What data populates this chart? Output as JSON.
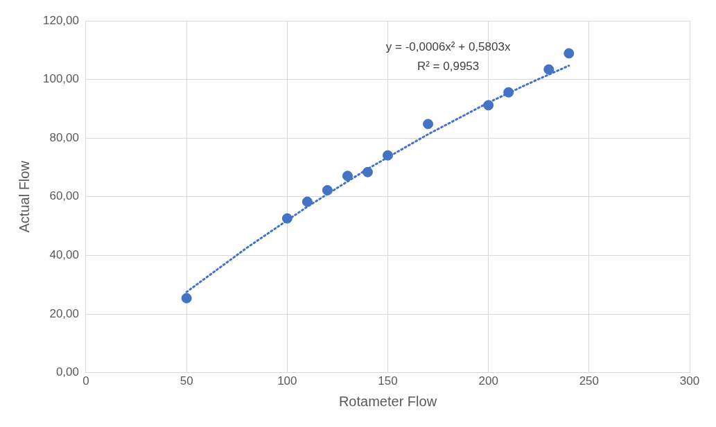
{
  "chart_data": {
    "type": "scatter",
    "xlabel": "Rotameter Flow",
    "ylabel": "Actual Flow",
    "xlim": [
      0,
      300
    ],
    "xticks": [
      0,
      50,
      100,
      150,
      200,
      250,
      300
    ],
    "ylim": [
      0,
      120
    ],
    "yticks": [
      {
        "value": 0,
        "label": "0,00"
      },
      {
        "value": 20,
        "label": "20,00"
      },
      {
        "value": 40,
        "label": "40,00"
      },
      {
        "value": 60,
        "label": "60,00"
      },
      {
        "value": 80,
        "label": "80,00"
      },
      {
        "value": 100,
        "label": "100,00"
      },
      {
        "value": 120,
        "label": "120,00"
      }
    ],
    "grid": true,
    "legend": false,
    "series": [
      {
        "type": "scatter",
        "color": "#4472c4",
        "marker": "circle",
        "x": [
          50,
          100,
          110,
          120,
          130,
          140,
          150,
          170,
          200,
          210,
          230,
          240
        ],
        "values": [
          25.4,
          52.6,
          58.3,
          62.2,
          67.1,
          68.4,
          74.1,
          84.8,
          91.2,
          95.6,
          103.4,
          108.9
        ]
      },
      {
        "type": "line",
        "color": "#4472c4",
        "marker": "none",
        "line_style": "dotted",
        "x": [
          50,
          80,
          110,
          140,
          170,
          200,
          220,
          240
        ],
        "values": [
          27.5,
          42.6,
          56.6,
          69.5,
          81.3,
          92.1,
          98.6,
          104.7
        ]
      }
    ],
    "annotations": [
      "y = -0,0006x² + 0,5803x",
      "R² = 0,9953"
    ]
  }
}
